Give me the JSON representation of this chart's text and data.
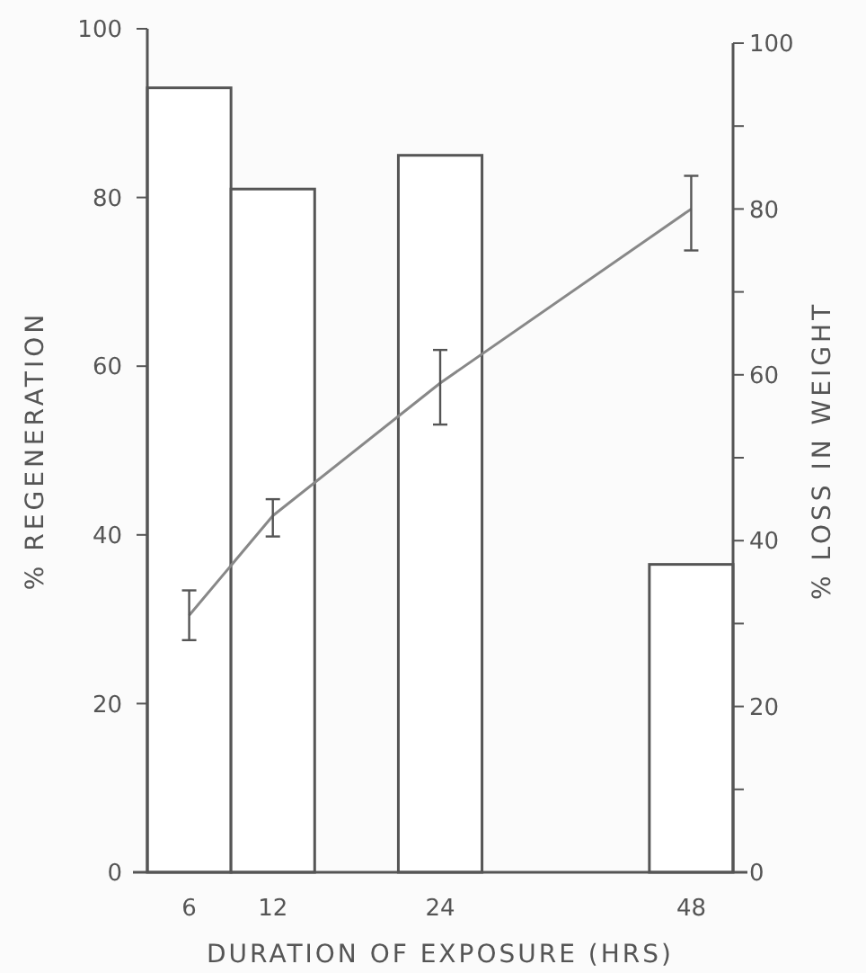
{
  "chart_data": {
    "type": "bar",
    "xlabel": "DURATION OF EXPOSURE (HRS)",
    "ylabel": "% REGENERATION",
    "y2label": "% LOSS IN WEIGHT",
    "categories": [
      "6",
      "12",
      null,
      "24",
      null,
      null,
      "48"
    ],
    "series": [
      {
        "color": "#ffffff",
        "values": [
          93,
          81,
          null,
          85,
          null,
          null,
          36.5
        ]
      },
      {
        "type": "line",
        "axis": "y2",
        "color": "#888888",
        "x": [
          "6",
          "12",
          "24",
          "48"
        ],
        "values": [
          31,
          43,
          59,
          80
        ],
        "errors": [
          [
            28,
            34
          ],
          [
            40.5,
            45
          ],
          [
            54,
            63
          ],
          [
            75,
            84
          ]
        ]
      }
    ],
    "ylim": [
      0,
      100
    ],
    "yticks": [
      0,
      20,
      40,
      60,
      80,
      100
    ],
    "y2lim": [
      0,
      100
    ],
    "y2ticks": [
      0,
      {
        "value": 10,
        "label": null
      },
      20,
      {
        "value": 30,
        "label": null
      },
      40,
      {
        "value": 50,
        "label": null
      },
      60,
      {
        "value": 70,
        "label": null
      },
      80,
      {
        "value": 90,
        "label": null
      },
      100
    ],
    "grid": false,
    "line_style": "solid",
    "marker": "none"
  }
}
